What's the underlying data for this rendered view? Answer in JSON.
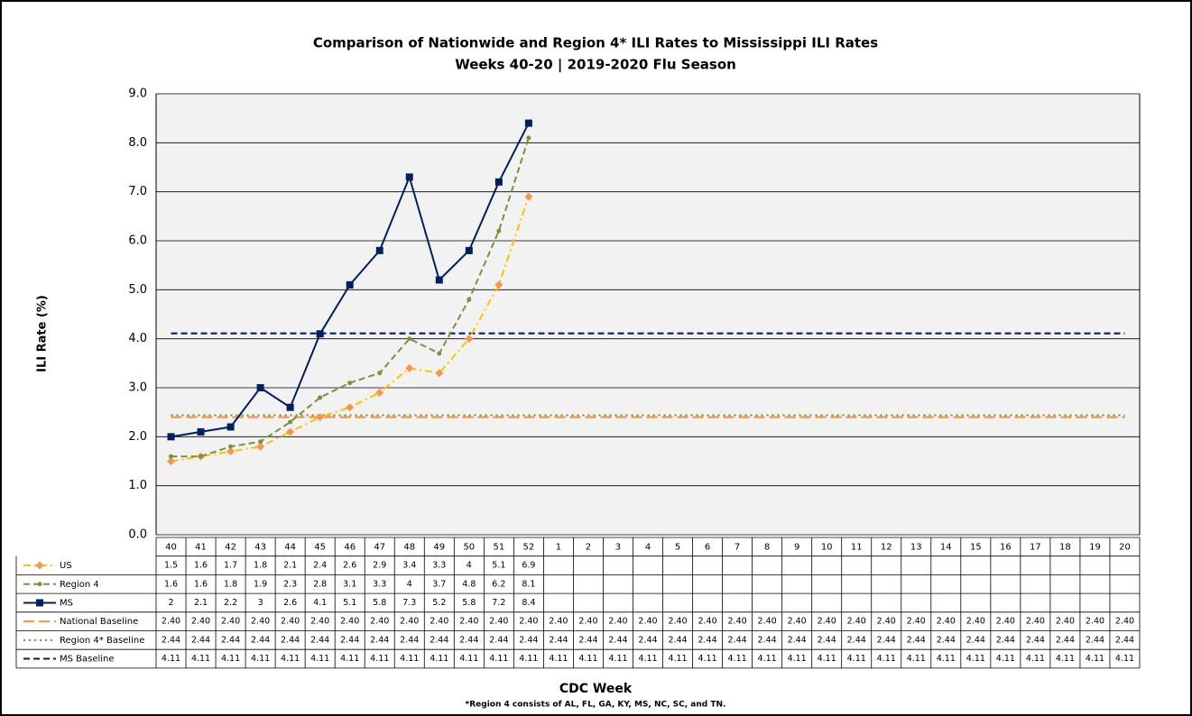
{
  "chart_data": {
    "type": "line",
    "title": "Comparison of Nationwide and Region 4* ILI Rates to Mississippi ILI Rates",
    "subtitle": "Weeks 40-20 | 2019-2020  Flu Season",
    "ylabel": "ILI Rate (%)",
    "xlabel": "CDC Week",
    "footnote": "*Region 4 consists of AL, FL, GA, KY, MS, NC, SC, and TN.",
    "categories": [
      "40",
      "41",
      "42",
      "43",
      "44",
      "45",
      "46",
      "47",
      "48",
      "49",
      "50",
      "51",
      "52",
      "1",
      "2",
      "3",
      "4",
      "5",
      "6",
      "7",
      "8",
      "9",
      "10",
      "11",
      "12",
      "13",
      "14",
      "15",
      "16",
      "17",
      "18",
      "19",
      "20"
    ],
    "ylim": [
      0,
      9
    ],
    "yticks": [
      {
        "value": 0,
        "label": "0.0"
      },
      {
        "value": 1,
        "label": "1.0"
      },
      {
        "value": 2,
        "label": "2.0"
      },
      {
        "value": 3,
        "label": "3.0"
      },
      {
        "value": 4,
        "label": "4.0"
      },
      {
        "value": 5,
        "label": "5.0"
      },
      {
        "value": 6,
        "label": "6.0"
      },
      {
        "value": 7,
        "label": "7.0"
      },
      {
        "value": 8,
        "label": "8.0"
      },
      {
        "value": 9,
        "label": "9.0"
      }
    ],
    "grid": true,
    "series": [
      {
        "name": "US",
        "color": "#ffc000",
        "marker_color": "#f79646",
        "line_style": "dashdot",
        "marker": "diamond",
        "values": [
          1.5,
          1.6,
          1.7,
          1.8,
          2.1,
          2.4,
          2.6,
          2.9,
          3.4,
          3.3,
          4.0,
          5.1,
          6.9,
          null,
          null,
          null,
          null,
          null,
          null,
          null,
          null,
          null,
          null,
          null,
          null,
          null,
          null,
          null,
          null,
          null,
          null,
          null,
          null
        ]
      },
      {
        "name": "Region 4",
        "color": "#77933c",
        "marker_color": "#77933c",
        "line_style": "dashed",
        "marker": "circle",
        "values": [
          1.6,
          1.6,
          1.8,
          1.9,
          2.3,
          2.8,
          3.1,
          3.3,
          4.0,
          3.7,
          4.8,
          6.2,
          8.1,
          null,
          null,
          null,
          null,
          null,
          null,
          null,
          null,
          null,
          null,
          null,
          null,
          null,
          null,
          null,
          null,
          null,
          null,
          null,
          null
        ]
      },
      {
        "name": "MS",
        "color": "#002060",
        "marker_color": "#002060",
        "line_style": "solid",
        "marker": "square",
        "values": [
          2.0,
          2.1,
          2.2,
          3.0,
          2.6,
          4.1,
          5.1,
          5.8,
          7.3,
          5.2,
          5.8,
          7.2,
          8.4,
          null,
          null,
          null,
          null,
          null,
          null,
          null,
          null,
          null,
          null,
          null,
          null,
          null,
          null,
          null,
          null,
          null,
          null,
          null,
          null
        ]
      },
      {
        "name": "National Baseline",
        "color": "#f79646",
        "line_style": "longdash",
        "marker": "none",
        "values": [
          2.4,
          2.4,
          2.4,
          2.4,
          2.4,
          2.4,
          2.4,
          2.4,
          2.4,
          2.4,
          2.4,
          2.4,
          2.4,
          2.4,
          2.4,
          2.4,
          2.4,
          2.4,
          2.4,
          2.4,
          2.4,
          2.4,
          2.4,
          2.4,
          2.4,
          2.4,
          2.4,
          2.4,
          2.4,
          2.4,
          2.4,
          2.4,
          2.4
        ],
        "value_labels": [
          "2.40",
          "2.40",
          "2.40",
          "2.40",
          "2.40",
          "2.40",
          "2.40",
          "2.40",
          "2.40",
          "2.40",
          "2.40",
          "2.40",
          "2.40",
          "2.40",
          "2.40",
          "2.40",
          "2.40",
          "2.40",
          "2.40",
          "2.40",
          "2.40",
          "2.40",
          "2.40",
          "2.40",
          "2.40",
          "2.40",
          "2.40",
          "2.40",
          "2.40",
          "2.40",
          "2.40",
          "2.40",
          "2.40"
        ]
      },
      {
        "name": "Region 4* Baseline",
        "color": "#77933c",
        "line_style": "dotted",
        "marker": "none",
        "values": [
          2.44,
          2.44,
          2.44,
          2.44,
          2.44,
          2.44,
          2.44,
          2.44,
          2.44,
          2.44,
          2.44,
          2.44,
          2.44,
          2.44,
          2.44,
          2.44,
          2.44,
          2.44,
          2.44,
          2.44,
          2.44,
          2.44,
          2.44,
          2.44,
          2.44,
          2.44,
          2.44,
          2.44,
          2.44,
          2.44,
          2.44,
          2.44,
          2.44
        ]
      },
      {
        "name": "MS Baseline",
        "color": "#002060",
        "line_style": "dashed",
        "marker": "none",
        "values": [
          4.11,
          4.11,
          4.11,
          4.11,
          4.11,
          4.11,
          4.11,
          4.11,
          4.11,
          4.11,
          4.11,
          4.11,
          4.11,
          4.11,
          4.11,
          4.11,
          4.11,
          4.11,
          4.11,
          4.11,
          4.11,
          4.11,
          4.11,
          4.11,
          4.11,
          4.11,
          4.11,
          4.11,
          4.11,
          4.11,
          4.11,
          4.11,
          4.11
        ]
      }
    ]
  }
}
